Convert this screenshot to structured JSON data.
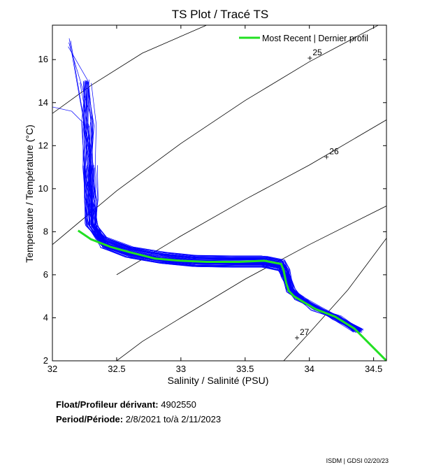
{
  "chart_data": {
    "type": "line",
    "title": "TS Plot / Tracé TS",
    "xlabel": "Salinity / Salinité (PSU)",
    "ylabel": "Temperature / Température (°C)",
    "xlim": [
      32.0,
      34.6
    ],
    "ylim": [
      2.0,
      17.6
    ],
    "xticks": [
      32,
      32.5,
      33,
      33.5,
      34,
      34.5
    ],
    "xtick_labels": [
      "32",
      "32.5",
      "33",
      "33.5",
      "34",
      "34.5"
    ],
    "yticks": [
      2,
      4,
      6,
      8,
      10,
      12,
      14,
      16
    ],
    "ytick_labels": [
      "2",
      "4",
      "6",
      "8",
      "10",
      "12",
      "14",
      "16"
    ],
    "grid": false,
    "legend_position": "top-right",
    "colors": {
      "profiles": "#0000ff",
      "recent": "#22e022",
      "isopycnal": "#000000"
    },
    "series": [
      {
        "name": "Most Recent | Dernier profil",
        "x": [
          32.2,
          32.3,
          32.45,
          32.6,
          32.8,
          33.0,
          33.2,
          33.45,
          33.65,
          33.78,
          33.8,
          33.82,
          33.84,
          33.88,
          33.95,
          34.05,
          34.2,
          34.35,
          34.45,
          34.6
        ],
        "y": [
          8.05,
          7.65,
          7.3,
          7.05,
          6.75,
          6.65,
          6.6,
          6.6,
          6.65,
          6.5,
          6.2,
          5.6,
          5.25,
          5.0,
          4.75,
          4.4,
          4.05,
          3.5,
          2.9,
          2.0
        ]
      }
    ],
    "profiles_name": "",
    "isopycnals": [
      {
        "label": "",
        "points": [
          [
            32.0,
            13.5
          ],
          [
            32.3,
            14.8
          ],
          [
            32.7,
            16.3
          ],
          [
            33.2,
            17.6
          ]
        ]
      },
      {
        "label": "25",
        "label_at": [
          34.02,
          16.2
        ],
        "points": [
          [
            32.0,
            7.4
          ],
          [
            32.5,
            9.9
          ],
          [
            33.0,
            12.1
          ],
          [
            33.5,
            14.1
          ],
          [
            34.0,
            15.9
          ],
          [
            34.6,
            17.8
          ]
        ]
      },
      {
        "label": "26",
        "label_at": [
          34.15,
          11.6
        ],
        "points": [
          [
            32.5,
            6.0
          ],
          [
            33.0,
            7.8
          ],
          [
            33.5,
            9.5
          ],
          [
            34.0,
            11.1
          ],
          [
            34.6,
            13.2
          ]
        ]
      },
      {
        "label": "",
        "points": [
          [
            32.5,
            2.0
          ],
          [
            32.7,
            2.9
          ],
          [
            33.0,
            4.0
          ],
          [
            33.5,
            5.8
          ],
          [
            34.0,
            7.4
          ],
          [
            34.6,
            9.2
          ]
        ]
      },
      {
        "label": "27",
        "label_at": [
          33.92,
          3.2
        ],
        "points": [
          [
            33.8,
            2.0
          ],
          [
            34.0,
            3.3
          ],
          [
            34.3,
            5.3
          ],
          [
            34.6,
            7.7
          ]
        ]
      }
    ]
  },
  "info": {
    "float_label": "Float/Profileur dérivant:",
    "float_id": "4902550",
    "period_label": "Period/Période:",
    "period_start": "2/8/2021",
    "period_sep": "to/à",
    "period_end": "2/11/2023"
  },
  "credit": "ISDM | GDSI 02/20/23"
}
